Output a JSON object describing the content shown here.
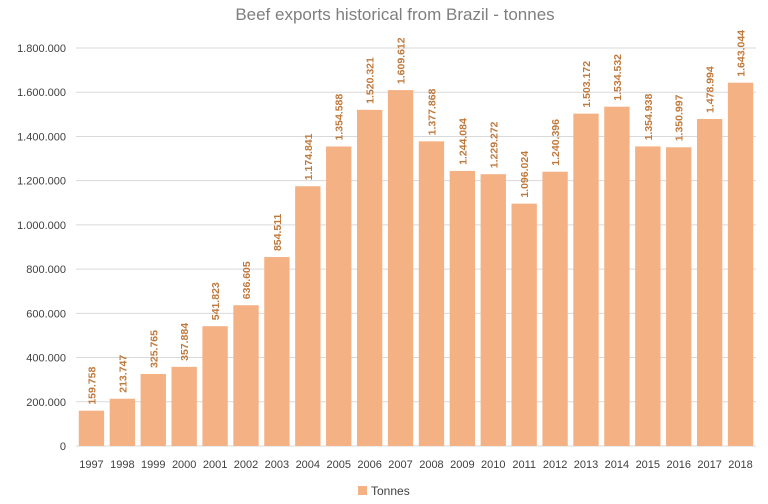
{
  "chart_data": {
    "type": "bar",
    "title": "Beef exports historical from Brazil - tonnes",
    "categories": [
      "1997",
      "1998",
      "1999",
      "2000",
      "2001",
      "2002",
      "2003",
      "2004",
      "2005",
      "2006",
      "2007",
      "2008",
      "2009",
      "2010",
      "2011",
      "2012",
      "2013",
      "2014",
      "2015",
      "2016",
      "2017",
      "2018"
    ],
    "series": [
      {
        "name": "Tonnes",
        "values": [
          159758,
          213747,
          325765,
          357884,
          541823,
          636605,
          854511,
          1174841,
          1354588,
          1520321,
          1609612,
          1377868,
          1244084,
          1229272,
          1096024,
          1240396,
          1503172,
          1534532,
          1354938,
          1350997,
          1478994,
          1643044
        ],
        "labels": [
          "159.758",
          "213.747",
          "325.765",
          "357.884",
          "541.823",
          "636.605",
          "854.511",
          "1.174.841",
          "1.354.588",
          "1.520.321",
          "1.609.612",
          "1.377.868",
          "1.244.084",
          "1.229.272",
          "1.096.024",
          "1.240.396",
          "1.503.172",
          "1.534.532",
          "1.354.938",
          "1.350.997",
          "1.478.994",
          "1.643.044"
        ],
        "color": "#f4b183",
        "label_color": "#c0793c"
      }
    ],
    "ylim": [
      0,
      1800000
    ],
    "yticks": [
      0,
      200000,
      400000,
      600000,
      800000,
      1000000,
      1200000,
      1400000,
      1600000,
      1800000
    ],
    "ytick_labels": [
      "0",
      "200.000",
      "400.000",
      "600.000",
      "800.000",
      "1.000.000",
      "1.200.000",
      "1.400.000",
      "1.600.000",
      "1.800.000"
    ],
    "grid": true,
    "legend_position": "bottom"
  }
}
